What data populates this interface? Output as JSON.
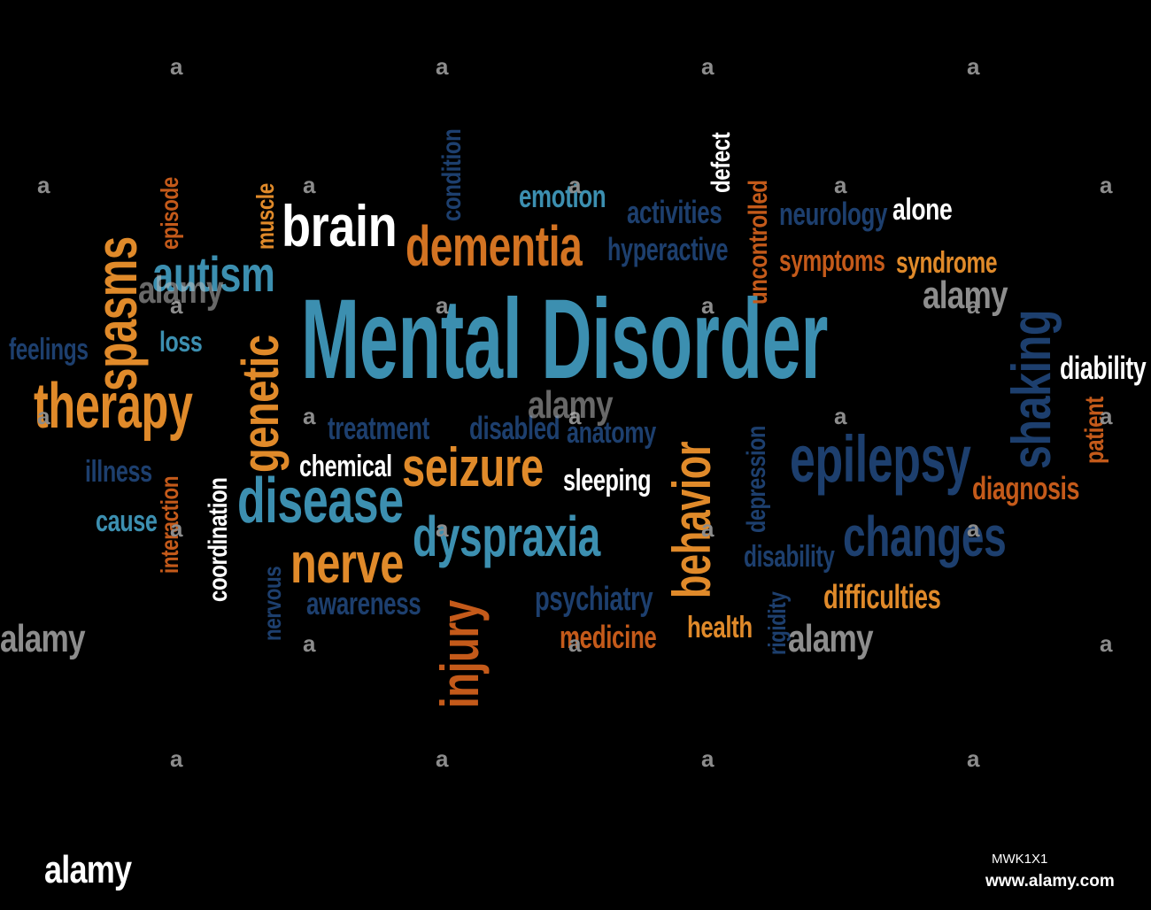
{
  "title": "Mental Disorder",
  "palette": {
    "background": "#000000",
    "light_blue": "#3c8fb0",
    "dark_blue": "#1d3f6e",
    "orange": "#e08a2a",
    "dark_orange": "#c45a1a",
    "white": "#ffffff",
    "watermark_gray": "#8c8c8c"
  },
  "words": [
    {
      "text": "Mental Disorder",
      "color": "#3c8fb0"
    },
    {
      "text": "brain",
      "color": "#ffffff"
    },
    {
      "text": "dementia",
      "color": "#d37322"
    },
    {
      "text": "autism",
      "color": "#3c8fb0"
    },
    {
      "text": "spasms",
      "color": "#e08a2a"
    },
    {
      "text": "therapy",
      "color": "#e08a2a"
    },
    {
      "text": "genetic",
      "color": "#e08a2a"
    },
    {
      "text": "feelings",
      "color": "#1d3f6e"
    },
    {
      "text": "loss",
      "color": "#3c8fb0"
    },
    {
      "text": "episode",
      "color": "#c45a1a"
    },
    {
      "text": "muscle",
      "color": "#e08a2a"
    },
    {
      "text": "condition",
      "color": "#1d3f6e"
    },
    {
      "text": "emotion",
      "color": "#3c8fb0"
    },
    {
      "text": "activities",
      "color": "#1d3f6e"
    },
    {
      "text": "hyperactive",
      "color": "#1d3f6e"
    },
    {
      "text": "defect",
      "color": "#ffffff"
    },
    {
      "text": "uncontrolled",
      "color": "#c45a1a"
    },
    {
      "text": "neurology",
      "color": "#1d3f6e"
    },
    {
      "text": "alone",
      "color": "#ffffff"
    },
    {
      "text": "symptoms",
      "color": "#c45a1a"
    },
    {
      "text": "syndrome",
      "color": "#e08a2a"
    },
    {
      "text": "shaking",
      "color": "#1d3f6e"
    },
    {
      "text": "diability",
      "color": "#ffffff"
    },
    {
      "text": "patient",
      "color": "#c45a1a"
    },
    {
      "text": "treatment",
      "color": "#1d3f6e"
    },
    {
      "text": "disabled",
      "color": "#1d3f6e"
    },
    {
      "text": "anatomy",
      "color": "#1d3f6e"
    },
    {
      "text": "chemical",
      "color": "#ffffff"
    },
    {
      "text": "seizure",
      "color": "#e08a2a"
    },
    {
      "text": "sleeping",
      "color": "#ffffff"
    },
    {
      "text": "behavior",
      "color": "#e08a2a"
    },
    {
      "text": "depression",
      "color": "#1d3f6e"
    },
    {
      "text": "epilepsy",
      "color": "#1d3f6e"
    },
    {
      "text": "diagnosis",
      "color": "#c45a1a"
    },
    {
      "text": "illness",
      "color": "#1d3f6e"
    },
    {
      "text": "interaction",
      "color": "#c45a1a"
    },
    {
      "text": "coordination",
      "color": "#ffffff"
    },
    {
      "text": "disease",
      "color": "#3c8fb0"
    },
    {
      "text": "cause",
      "color": "#3c8fb0"
    },
    {
      "text": "dyspraxia",
      "color": "#3c8fb0"
    },
    {
      "text": "changes",
      "color": "#1d3f6e"
    },
    {
      "text": "nerve",
      "color": "#e08a2a"
    },
    {
      "text": "nervous",
      "color": "#1d3f6e"
    },
    {
      "text": "awareness",
      "color": "#1d3f6e"
    },
    {
      "text": "injury",
      "color": "#c45a1a"
    },
    {
      "text": "psychiatry",
      "color": "#1d3f6e"
    },
    {
      "text": "medicine",
      "color": "#c45a1a"
    },
    {
      "text": "health",
      "color": "#e08a2a"
    },
    {
      "text": "disability",
      "color": "#1d3f6e"
    },
    {
      "text": "rigidity",
      "color": "#1d3f6e"
    },
    {
      "text": "difficulties",
      "color": "#e08a2a"
    }
  ],
  "watermark": {
    "brand": "alamy",
    "mark": "a"
  },
  "footer": {
    "logo": "alamy",
    "image_id": "MWK1X1",
    "url": "www.alamy.com"
  }
}
